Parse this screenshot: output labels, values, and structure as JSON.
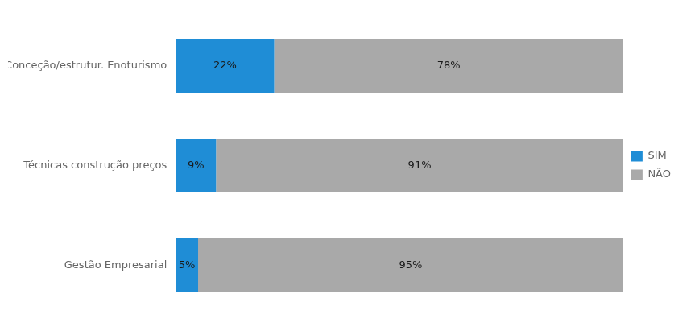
{
  "chart_data": {
    "type": "bar",
    "orientation": "horizontal",
    "stacked": true,
    "categories": [
      "Conceção/estrutur. Enoturismo",
      "Técnicas construção preços",
      "Gestão Empresarial"
    ],
    "series": [
      {
        "name": "SIM",
        "color": "#1f8dd6",
        "values": [
          22,
          9,
          5
        ],
        "value_labels": [
          "22%",
          "9%",
          "5%"
        ]
      },
      {
        "name": "NÃO",
        "color": "#a9a9a9",
        "values": [
          78,
          91,
          95
        ],
        "value_labels": [
          "78%",
          "91%",
          "95%"
        ]
      }
    ],
    "xlim": [
      0,
      100
    ],
    "grid": false,
    "legend": "right",
    "data_labels": true,
    "tick_labels": "y"
  }
}
